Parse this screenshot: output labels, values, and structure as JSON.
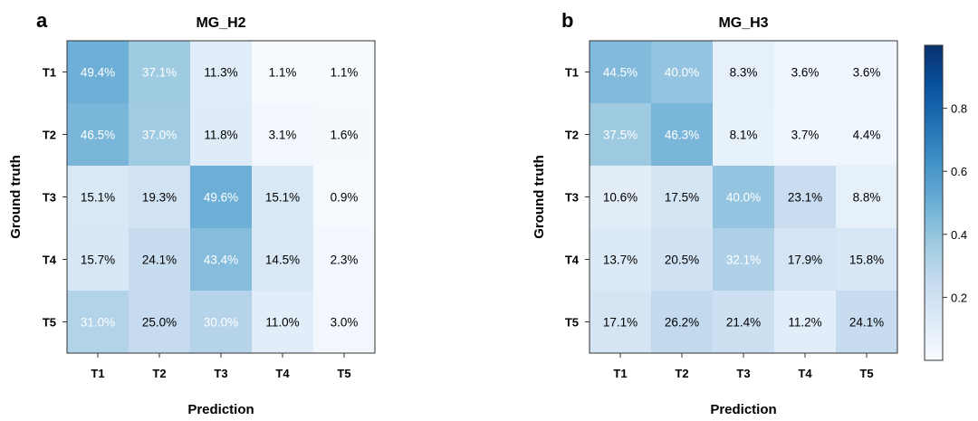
{
  "colorbar": {
    "min": 0,
    "max": 1,
    "ticks": [
      0.2,
      0.4,
      0.6,
      0.8
    ],
    "tick_labels": [
      "0.2",
      "0.4",
      "0.6",
      "0.8"
    ],
    "colors": [
      "#f7fbff",
      "#deebf7",
      "#c6dbef",
      "#9ecae1",
      "#6baed6",
      "#4292c6",
      "#2171b5",
      "#08519c",
      "#08306b"
    ]
  },
  "chart_data": [
    {
      "type": "heatmap",
      "panel_letter": "a",
      "title": "MG_H2",
      "xlabel": "Prediction",
      "ylabel": "Ground truth",
      "x": [
        "T1",
        "T2",
        "T3",
        "T4",
        "T5"
      ],
      "y": [
        "T1",
        "T2",
        "T3",
        "T4",
        "T5"
      ],
      "values": [
        [
          0.494,
          0.371,
          0.113,
          0.011,
          0.011
        ],
        [
          0.465,
          0.37,
          0.118,
          0.031,
          0.016
        ],
        [
          0.151,
          0.193,
          0.496,
          0.151,
          0.009
        ],
        [
          0.157,
          0.241,
          0.434,
          0.145,
          0.023
        ],
        [
          0.31,
          0.25,
          0.3,
          0.11,
          0.03
        ]
      ],
      "labels": [
        [
          "49.4%",
          "37.1%",
          "11.3%",
          "1.1%",
          "1.1%"
        ],
        [
          "46.5%",
          "37.0%",
          "11.8%",
          "3.1%",
          "1.6%"
        ],
        [
          "15.1%",
          "19.3%",
          "49.6%",
          "15.1%",
          "0.9%"
        ],
        [
          "15.7%",
          "24.1%",
          "43.4%",
          "14.5%",
          "2.3%"
        ],
        [
          "31.0%",
          "25.0%",
          "30.0%",
          "11.0%",
          "3.0%"
        ]
      ]
    },
    {
      "type": "heatmap",
      "panel_letter": "b",
      "title": "MG_H3",
      "xlabel": "Prediction",
      "ylabel": "Ground truth",
      "x": [
        "T1",
        "T2",
        "T3",
        "T4",
        "T5"
      ],
      "y": [
        "T1",
        "T2",
        "T3",
        "T4",
        "T5"
      ],
      "values": [
        [
          0.445,
          0.4,
          0.083,
          0.036,
          0.036
        ],
        [
          0.375,
          0.463,
          0.081,
          0.037,
          0.044
        ],
        [
          0.106,
          0.175,
          0.4,
          0.231,
          0.088
        ],
        [
          0.137,
          0.205,
          0.321,
          0.179,
          0.158
        ],
        [
          0.171,
          0.262,
          0.214,
          0.112,
          0.241
        ]
      ],
      "labels": [
        [
          "44.5%",
          "40.0%",
          "8.3%",
          "3.6%",
          "3.6%"
        ],
        [
          "37.5%",
          "46.3%",
          "8.1%",
          "3.7%",
          "4.4%"
        ],
        [
          "10.6%",
          "17.5%",
          "40.0%",
          "23.1%",
          "8.8%"
        ],
        [
          "13.7%",
          "20.5%",
          "32.1%",
          "17.9%",
          "15.8%"
        ],
        [
          "17.1%",
          "26.2%",
          "21.4%",
          "11.2%",
          "24.1%"
        ]
      ]
    }
  ]
}
